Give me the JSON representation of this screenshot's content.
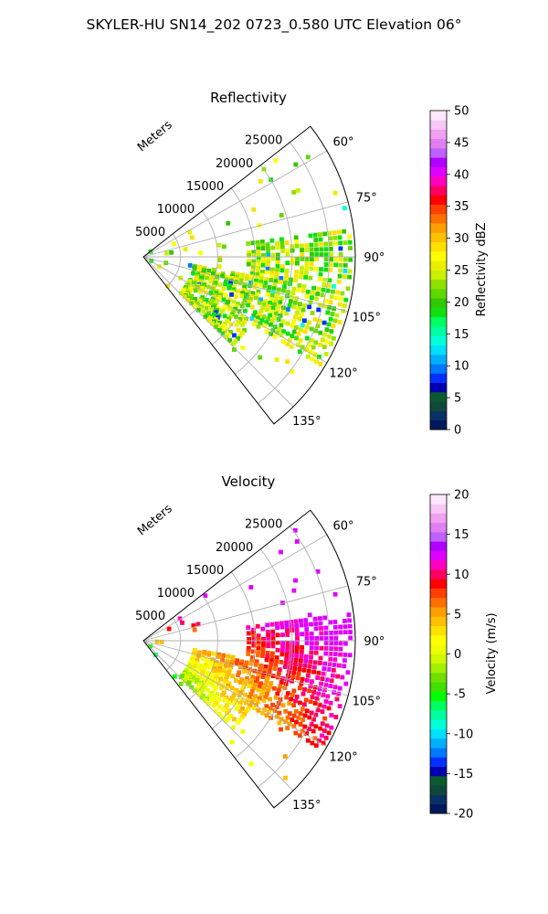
{
  "figure": {
    "title": "SKYLER-HU  SN14_202  0723_0.580 UTC Elevation 06°"
  },
  "chart_data": [
    {
      "type": "polar-sector",
      "title": "Reflectivity",
      "range_label": "Meters",
      "range_ticks": [
        "5000",
        "10000",
        "15000",
        "20000",
        "25000"
      ],
      "azimuth_ticks": [
        "60°",
        "75°",
        "90°",
        "105°",
        "120°",
        "135°"
      ],
      "azimuth_range_deg": [
        52,
        142
      ],
      "range_max_m": 28500,
      "grid": true,
      "colorbar": {
        "label": "Reflectivity dBZ",
        "ticks": [
          "0",
          "5",
          "10",
          "15",
          "20",
          "25",
          "30",
          "35",
          "40",
          "45",
          "50"
        ],
        "min": 0,
        "max": 50
      }
    },
    {
      "type": "polar-sector",
      "title": "Velocity",
      "range_label": "Meters",
      "range_ticks": [
        "5000",
        "10000",
        "15000",
        "20000",
        "25000"
      ],
      "azimuth_ticks": [
        "60°",
        "75°",
        "90°",
        "105°",
        "120°",
        "135°"
      ],
      "azimuth_range_deg": [
        52,
        142
      ],
      "range_max_m": 28500,
      "grid": true,
      "colorbar": {
        "label": "Velocity (m/s)",
        "ticks": [
          "-20",
          "-15",
          "-10",
          "-5",
          "0",
          "5",
          "10",
          "15",
          "20"
        ],
        "min": -20,
        "max": 20
      }
    }
  ],
  "colors": {
    "refl_scale": [
      "#001a5c",
      "#0b3066",
      "#0d4a3a",
      "#0a5a2e",
      "#0000b0",
      "#0030ff",
      "#0078ff",
      "#00b0ff",
      "#00e0ff",
      "#00ffd8",
      "#00ffa0",
      "#00ff60",
      "#10e010",
      "#30c800",
      "#60d800",
      "#90e000",
      "#c8f000",
      "#e8f000",
      "#ffff00",
      "#ffe000",
      "#ffc000",
      "#ffa000",
      "#ff7000",
      "#ff4000",
      "#ff0000",
      "#ff0060",
      "#ff00c0",
      "#e000ff",
      "#b000ff",
      "#c060ff",
      "#e080f0",
      "#f0a0f0",
      "#f8c8f8",
      "#ffe8ff"
    ],
    "vel_scale": [
      "#001a5c",
      "#0b3066",
      "#0d4a3a",
      "#0a5a2e",
      "#0000b0",
      "#0030ff",
      "#0078ff",
      "#00b0ff",
      "#00e0ff",
      "#00ffd8",
      "#00ffa0",
      "#00ff60",
      "#00ff00",
      "#40e000",
      "#70e000",
      "#a0f000",
      "#d0f800",
      "#f0ff00",
      "#ffff00",
      "#ffe000",
      "#ffc000",
      "#ffa000",
      "#ff7000",
      "#ff4000",
      "#ff0000",
      "#ff0060",
      "#ff00c0",
      "#e000ff",
      "#b000ff",
      "#c060ff",
      "#e080f0",
      "#f0a0f0",
      "#f8c8f8",
      "#ffe8ff"
    ]
  }
}
